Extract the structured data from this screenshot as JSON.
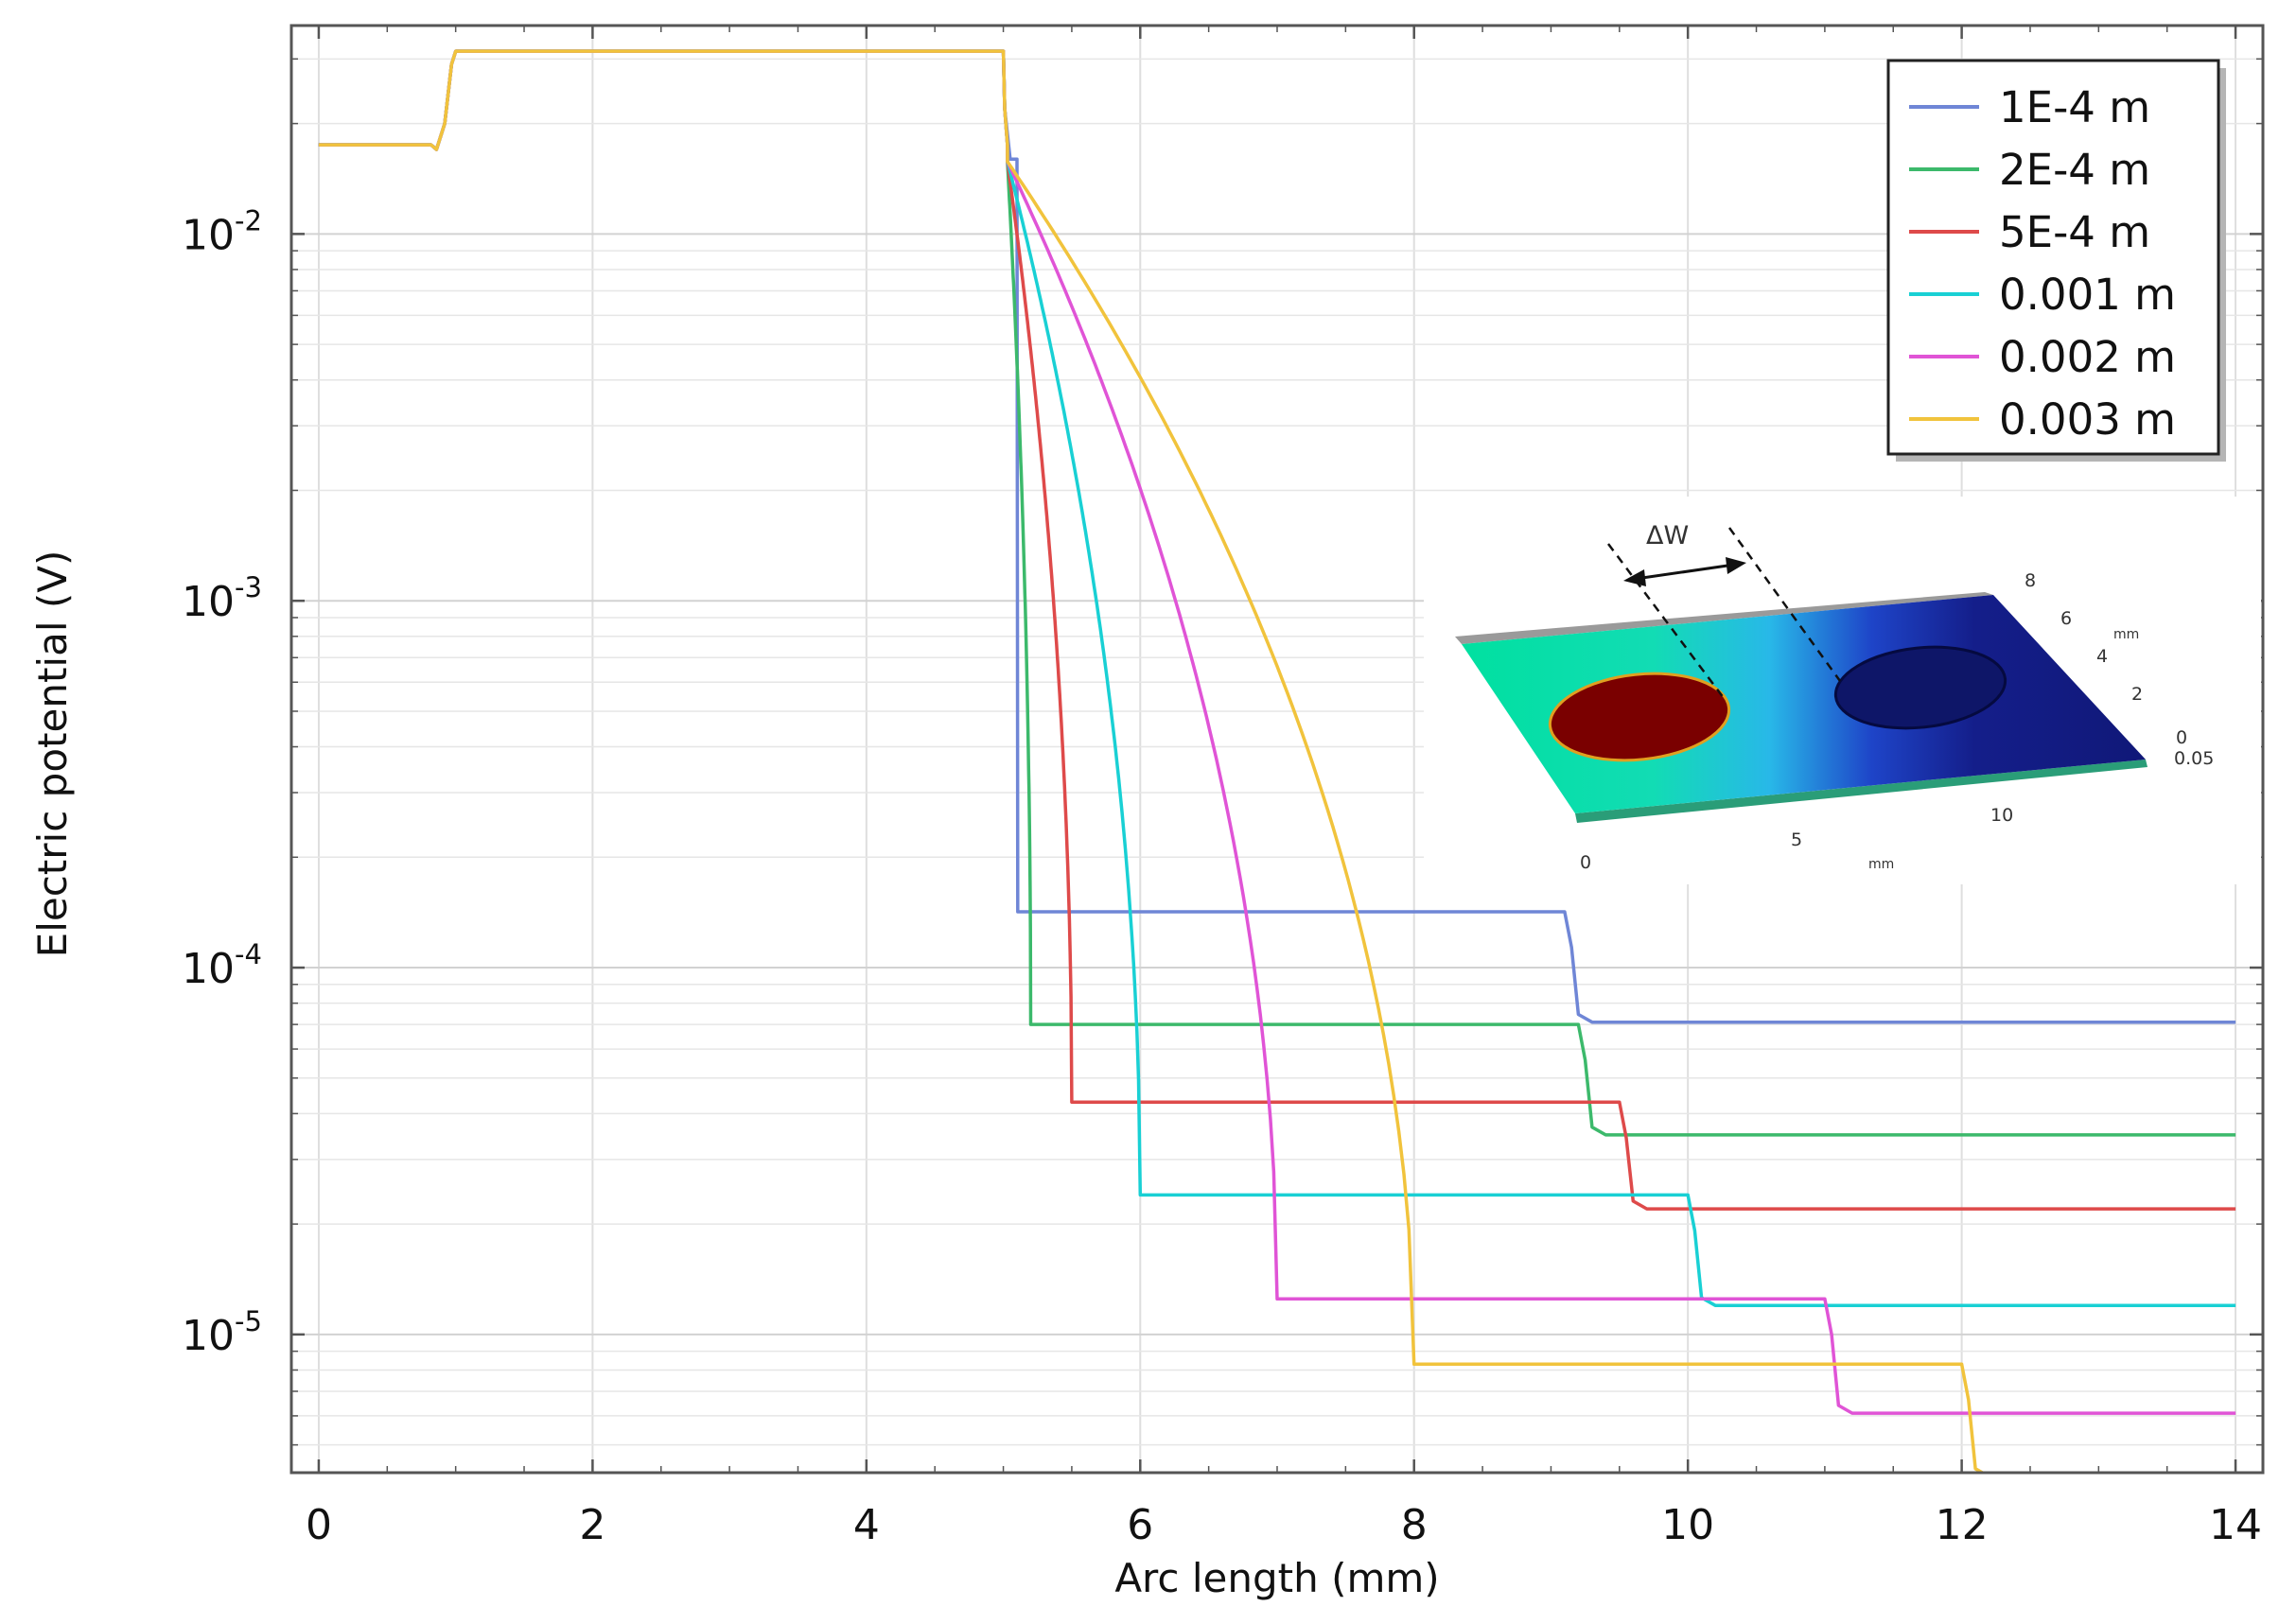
{
  "chart_data": {
    "type": "line",
    "xlabel": "Arc length (mm)",
    "ylabel": "Electric potential (V)",
    "xlim": [
      -0.2,
      14.2
    ],
    "ylim": [
      4.2e-06,
      0.037
    ],
    "yscale": "log",
    "grid": true,
    "legend_position": "top-right",
    "x_ticks": [
      "0",
      "2",
      "4",
      "6",
      "8",
      "10",
      "12",
      "14"
    ],
    "y_ticks": [
      {
        "value": 1e-05,
        "base": "10",
        "exp": "-5"
      },
      {
        "value": 0.0001,
        "base": "10",
        "exp": "-4"
      },
      {
        "value": 0.001,
        "base": "10",
        "exp": "-3"
      },
      {
        "value": 0.01,
        "base": "10",
        "exp": "-2"
      }
    ],
    "series": [
      {
        "name": "1E-4 m",
        "color": "#6f86d6",
        "gap_start": 5.0,
        "gap_end": 5.1,
        "y_gap": 0.000142,
        "step_x": 9.1,
        "y_end": 7.1e-05
      },
      {
        "name": "2E-4 m",
        "color": "#3cb96b",
        "gap_start": 5.0,
        "gap_end": 5.2,
        "y_gap": 7e-05,
        "step_x": 9.2,
        "y_end": 3.5e-05
      },
      {
        "name": "5E-4 m",
        "color": "#de4a4a",
        "gap_start": 5.0,
        "gap_end": 5.5,
        "y_gap": 4.3e-05,
        "step_x": 9.5,
        "y_end": 2.2e-05
      },
      {
        "name": "0.001 m",
        "color": "#19d0d4",
        "gap_start": 5.0,
        "gap_end": 6.0,
        "y_gap": 2.4e-05,
        "step_x": 10.0,
        "y_end": 1.2e-05
      },
      {
        "name": "0.002 m",
        "color": "#e054d6",
        "gap_start": 5.0,
        "gap_end": 7.0,
        "y_gap": 1.25e-05,
        "step_x": 11.0,
        "y_end": 6.1e-06
      },
      {
        "name": "0.003 m",
        "color": "#f1c33c",
        "gap_start": 5.0,
        "gap_end": 8.0,
        "y_gap": 8.3e-06,
        "step_x": 12.0,
        "y_end": 4.1e-06
      }
    ],
    "common_profile": {
      "x": [
        0,
        0.85,
        1.0,
        5.0,
        5.05
      ],
      "y": [
        0.0175,
        0.0175,
        0.0315,
        0.0315,
        0.0175
      ]
    }
  },
  "inset": {
    "delta_label": "ΔW",
    "y_unit": "mm",
    "x_unit": "mm",
    "x_ticks": [
      "0",
      "5",
      "10"
    ],
    "y_ticks": [
      "0",
      "2",
      "4",
      "6",
      "8"
    ],
    "z_tick": "0.05",
    "colors": {
      "left": "#00e0a0",
      "mid": "#28b8e8",
      "right": "#101878",
      "electrode": "#7a0000"
    }
  }
}
